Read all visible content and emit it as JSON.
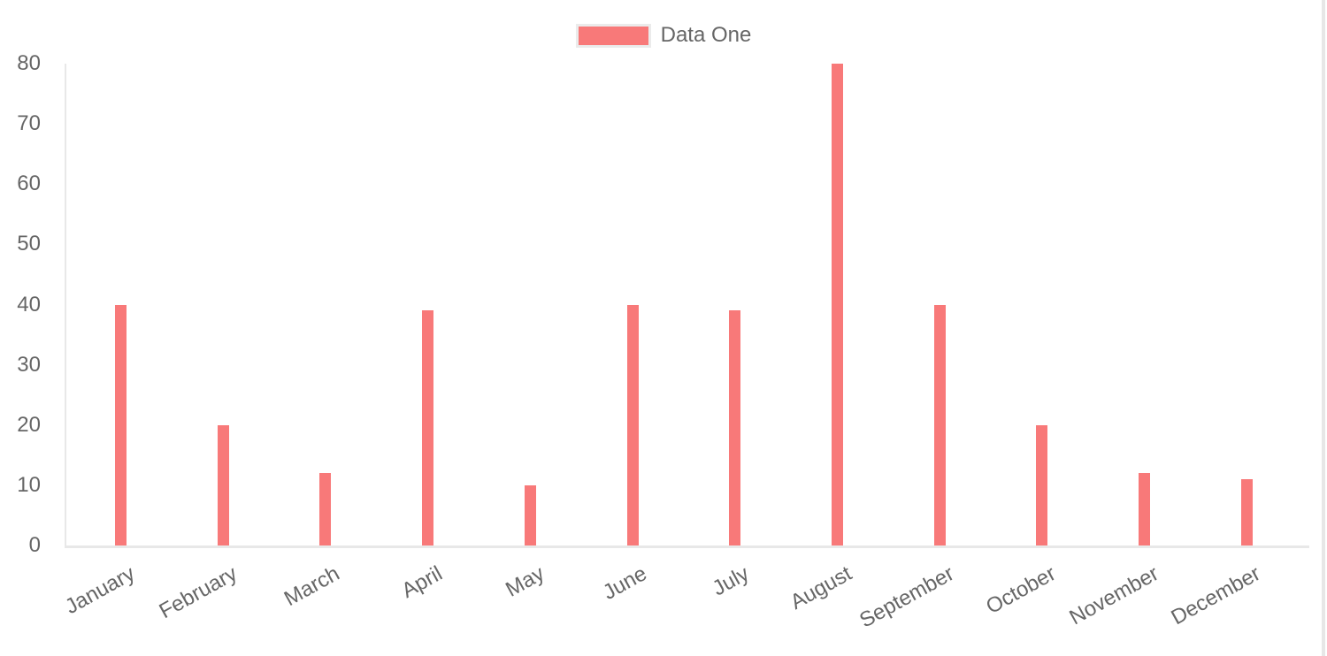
{
  "chart_data": {
    "type": "bar",
    "categories": [
      "January",
      "February",
      "March",
      "April",
      "May",
      "June",
      "July",
      "August",
      "September",
      "October",
      "November",
      "December"
    ],
    "series": [
      {
        "name": "Data One",
        "color": "#f87979",
        "values": [
          40,
          20,
          12,
          39,
          10,
          40,
          39,
          80,
          40,
          20,
          12,
          11
        ]
      }
    ],
    "y_axis": {
      "min": 0,
      "max": 80,
      "tick_step": 10,
      "ticks": [
        0,
        10,
        20,
        30,
        40,
        50,
        60,
        70,
        80
      ]
    },
    "x_axis": {
      "label_rotation_deg": -29
    },
    "legend": {
      "position": "top",
      "entries": [
        {
          "label": "Data One",
          "color": "#f87979"
        }
      ]
    },
    "grid": "off",
    "colors": {
      "text": "#666666",
      "axis_line": "rgba(0,0,0,0.09)",
      "bar": "#f87979",
      "legend_swatch_border": "#ebebeb",
      "scrollbar": "#e7e7e7"
    }
  }
}
